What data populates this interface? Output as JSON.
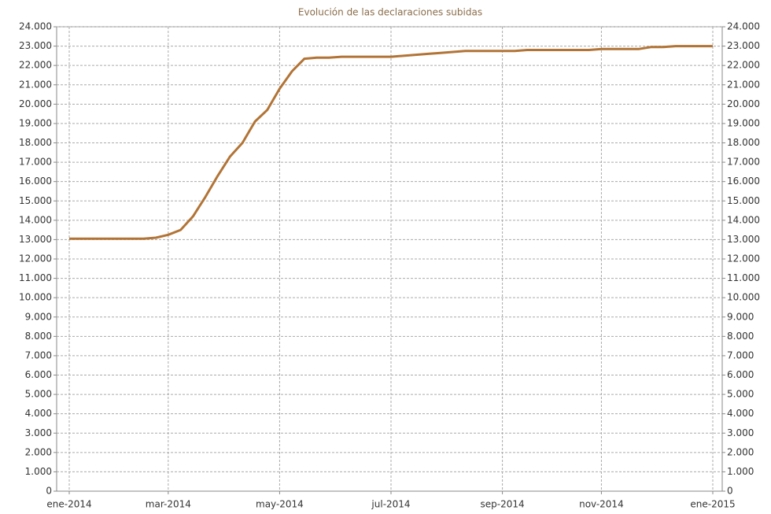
{
  "chart_data": {
    "type": "line",
    "title": "Evolución de las declaraciones subidas",
    "categories": [
      "ene-2014",
      null,
      null,
      null,
      null,
      null,
      null,
      null,
      "mar-2014",
      null,
      null,
      null,
      null,
      null,
      null,
      null,
      null,
      "may-2014",
      null,
      null,
      null,
      null,
      null,
      null,
      null,
      null,
      "jul-2014",
      null,
      null,
      null,
      null,
      null,
      null,
      null,
      null,
      "sep-2014",
      null,
      null,
      null,
      null,
      null,
      null,
      null,
      "nov-2014",
      null,
      null,
      null,
      null,
      null,
      null,
      null,
      null,
      "ene-2015"
    ],
    "series": [
      {
        "name": "Declaraciones subidas",
        "color": "#b27436",
        "values": [
          13050,
          13050,
          13050,
          13050,
          13050,
          13050,
          13050,
          13100,
          13250,
          13500,
          14200,
          15200,
          16300,
          17300,
          18000,
          19100,
          19700,
          20800,
          21700,
          22350,
          22400,
          22400,
          22450,
          22450,
          22450,
          22450,
          22450,
          22500,
          22550,
          22600,
          22650,
          22700,
          22750,
          22750,
          22750,
          22750,
          22750,
          22800,
          22800,
          22800,
          22800,
          22800,
          22800,
          22850,
          22850,
          22850,
          22850,
          22950,
          22950,
          23000,
          23000,
          23000,
          23000
        ]
      }
    ],
    "ylim": [
      0,
      24000
    ],
    "yticks": [
      0,
      {
        "value": 1000,
        "label": "1.000"
      },
      {
        "value": 2000,
        "label": "2.000"
      },
      {
        "value": 3000,
        "label": "3.000"
      },
      {
        "value": 4000,
        "label": "4.000"
      },
      {
        "value": 5000,
        "label": "5.000"
      },
      {
        "value": 6000,
        "label": "6.000"
      },
      {
        "value": 7000,
        "label": "7.000"
      },
      {
        "value": 8000,
        "label": "8.000"
      },
      {
        "value": 9000,
        "label": "9.000"
      },
      {
        "value": 10000,
        "label": "10.000"
      },
      {
        "value": 11000,
        "label": "11.000"
      },
      {
        "value": 12000,
        "label": "12.000"
      },
      {
        "value": 13000,
        "label": "13.000"
      },
      {
        "value": 14000,
        "label": "14.000"
      },
      {
        "value": 15000,
        "label": "15.000"
      },
      {
        "value": 16000,
        "label": "16.000"
      },
      {
        "value": 17000,
        "label": "17.000"
      },
      {
        "value": 18000,
        "label": "18.000"
      },
      {
        "value": 19000,
        "label": "19.000"
      },
      {
        "value": 20000,
        "label": "20.000"
      },
      {
        "value": 21000,
        "label": "21.000"
      },
      {
        "value": 22000,
        "label": "22.000"
      },
      {
        "value": 23000,
        "label": "23.000"
      },
      {
        "value": 24000,
        "label": "24.000"
      }
    ],
    "y2lim": [
      0,
      24000
    ],
    "y2ticks": [
      0,
      {
        "value": 1000,
        "label": "1.000"
      },
      {
        "value": 2000,
        "label": "2.000"
      },
      {
        "value": 3000,
        "label": "3.000"
      },
      {
        "value": 4000,
        "label": "4.000"
      },
      {
        "value": 5000,
        "label": "5.000"
      },
      {
        "value": 6000,
        "label": "6.000"
      },
      {
        "value": 7000,
        "label": "7.000"
      },
      {
        "value": 8000,
        "label": "8.000"
      },
      {
        "value": 9000,
        "label": "9.000"
      },
      {
        "value": 10000,
        "label": "10.000"
      },
      {
        "value": 11000,
        "label": "11.000"
      },
      {
        "value": 12000,
        "label": "12.000"
      },
      {
        "value": 13000,
        "label": "13.000"
      },
      {
        "value": 14000,
        "label": "14.000"
      },
      {
        "value": 15000,
        "label": "15.000"
      },
      {
        "value": 16000,
        "label": "16.000"
      },
      {
        "value": 17000,
        "label": "17.000"
      },
      {
        "value": 18000,
        "label": "18.000"
      },
      {
        "value": 19000,
        "label": "19.000"
      },
      {
        "value": 20000,
        "label": "20.000"
      },
      {
        "value": 21000,
        "label": "21.000"
      },
      {
        "value": 22000,
        "label": "22.000"
      },
      {
        "value": 23000,
        "label": "23.000"
      },
      {
        "value": 24000,
        "label": "24.000"
      }
    ],
    "grid": true
  }
}
